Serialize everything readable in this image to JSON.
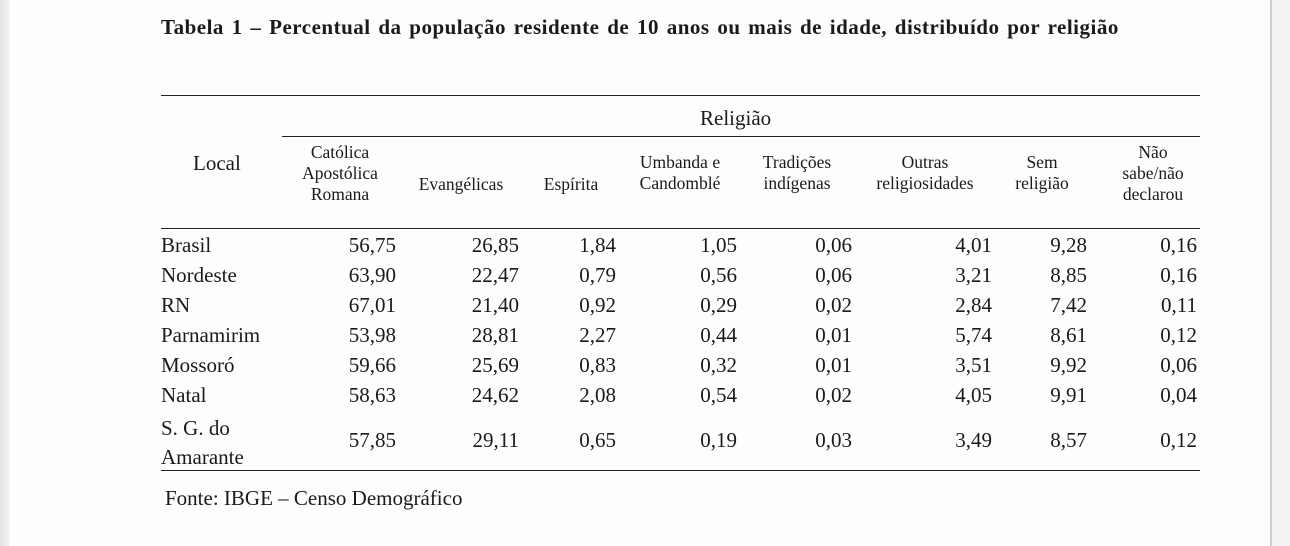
{
  "caption": "Tabela 1 – Percentual da população residente de 10 anos ou mais de idade, distribuído por religião",
  "group_header": "Religião",
  "local_header": "Local",
  "columns": [
    [
      "Católica",
      "Apostólica",
      "Romana"
    ],
    [
      "Evangélicas"
    ],
    [
      "Espírita"
    ],
    [
      "Umbanda e",
      "Candomblé"
    ],
    [
      "Tradições",
      "indígenas"
    ],
    [
      "Outras",
      "religiosidades"
    ],
    [
      "Sem",
      "religião"
    ],
    [
      "Não",
      "sabe/não",
      "declarou"
    ]
  ],
  "rows": [
    {
      "label": [
        "Brasil"
      ],
      "values": [
        "56,75",
        "26,85",
        "1,84",
        "1,05",
        "0,06",
        "4,01",
        "9,28",
        "0,16"
      ]
    },
    {
      "label": [
        "Nordeste"
      ],
      "values": [
        "63,90",
        "22,47",
        "0,79",
        "0,56",
        "0,06",
        "3,21",
        "8,85",
        "0,16"
      ]
    },
    {
      "label": [
        "RN"
      ],
      "values": [
        "67,01",
        "21,40",
        "0,92",
        "0,29",
        "0,02",
        "2,84",
        "7,42",
        "0,11"
      ]
    },
    {
      "label": [
        "Parnamirim"
      ],
      "values": [
        "53,98",
        "28,81",
        "2,27",
        "0,44",
        "0,01",
        "5,74",
        "8,61",
        "0,12"
      ]
    },
    {
      "label": [
        "Mossoró"
      ],
      "values": [
        "59,66",
        "25,69",
        "0,83",
        "0,32",
        "0,01",
        "3,51",
        "9,92",
        "0,06"
      ]
    },
    {
      "label": [
        "Natal"
      ],
      "values": [
        "58,63",
        "24,62",
        "2,08",
        "0,54",
        "0,02",
        "4,05",
        "9,91",
        "0,04"
      ]
    },
    {
      "label": [
        "S. G. do",
        "Amarante"
      ],
      "values": [
        "57,85",
        "29,11",
        "0,65",
        "0,19",
        "0,03",
        "3,49",
        "8,57",
        "0,12"
      ]
    }
  ],
  "source": "Fonte: IBGE – Censo Demográfico"
}
